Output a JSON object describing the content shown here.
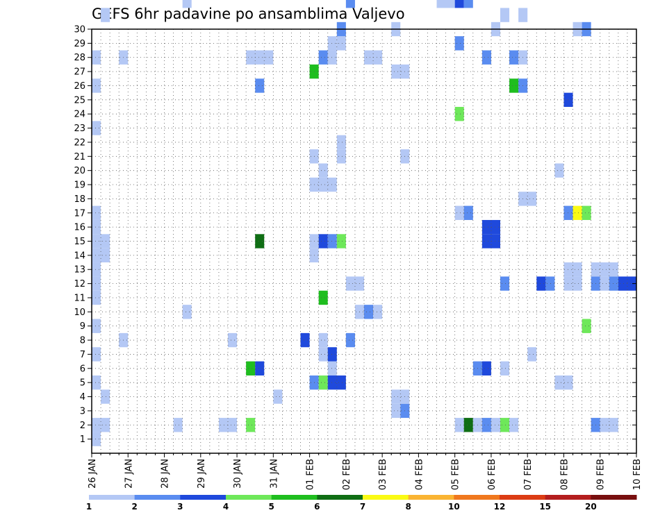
{
  "chart_data": {
    "type": "heatmap",
    "title": "GEFS 6hr padavine po ansamblima Valjevo",
    "xlabel": "",
    "ylabel": "",
    "x_tick_labels": [
      "26 JAN",
      "27 JAN",
      "28 JAN",
      "29 JAN",
      "30 JAN",
      "31 JAN",
      "01 FEB",
      "02 FEB",
      "03 FEB",
      "04 FEB",
      "05 FEB",
      "06 FEB",
      "07 FEB",
      "08 FEB",
      "09 FEB",
      "10 FEB"
    ],
    "y_tick_labels": [
      "1",
      "2",
      "3",
      "4",
      "5",
      "6",
      "7",
      "8",
      "9",
      "10",
      "11",
      "12",
      "13",
      "14",
      "15",
      "16",
      "17",
      "18",
      "19",
      "20",
      "21",
      "22",
      "23",
      "24",
      "25",
      "26",
      "27",
      "28",
      "29",
      "30"
    ],
    "x_range_hours": [
      0,
      360
    ],
    "y_range_members": [
      0,
      30
    ],
    "grid": true,
    "legend_placement": "bottom",
    "legend_thresholds": [
      "1",
      "2",
      "3",
      "4",
      "5",
      "6",
      "7",
      "8",
      "10",
      "12",
      "15",
      "20"
    ],
    "legend_colors": [
      "#b4c8f5",
      "#5a8cf0",
      "#1f49dc",
      "#6ee85a",
      "#1fbe1f",
      "#0f6e14",
      "#fafa14",
      "#fab432",
      "#f0781e",
      "#dc3c14",
      "#b41e1e",
      "#780f0f"
    ],
    "cells": [
      [
        0,
        1,
        6,
        1
      ],
      [
        0,
        2,
        6,
        1
      ],
      [
        6,
        2,
        6,
        1
      ],
      [
        54,
        2,
        6,
        1
      ],
      [
        84,
        2,
        12,
        1
      ],
      [
        102,
        2,
        6,
        4
      ],
      [
        240,
        2,
        6,
        1
      ],
      [
        246,
        2,
        6,
        6
      ],
      [
        252,
        2,
        6,
        1
      ],
      [
        258,
        2,
        6,
        2
      ],
      [
        264,
        2,
        6,
        1
      ],
      [
        270,
        2,
        6,
        4
      ],
      [
        276,
        2,
        6,
        1
      ],
      [
        330,
        2,
        6,
        2
      ],
      [
        336,
        2,
        12,
        1
      ],
      [
        198,
        3,
        6,
        1
      ],
      [
        204,
        3,
        6,
        2
      ],
      [
        6,
        4,
        6,
        1
      ],
      [
        120,
        4,
        6,
        1
      ],
      [
        198,
        4,
        12,
        1
      ],
      [
        0,
        5,
        6,
        1
      ],
      [
        144,
        5,
        6,
        2
      ],
      [
        150,
        5,
        6,
        4
      ],
      [
        156,
        5,
        12,
        3
      ],
      [
        306,
        5,
        12,
        1
      ],
      [
        102,
        6,
        6,
        5
      ],
      [
        108,
        6,
        6,
        3
      ],
      [
        156,
        6,
        6,
        1
      ],
      [
        252,
        6,
        6,
        2
      ],
      [
        258,
        6,
        6,
        3
      ],
      [
        270,
        6,
        6,
        1
      ],
      [
        0,
        7,
        6,
        1
      ],
      [
        150,
        7,
        6,
        1
      ],
      [
        156,
        7,
        6,
        3
      ],
      [
        288,
        7,
        6,
        1
      ],
      [
        18,
        8,
        6,
        1
      ],
      [
        90,
        8,
        6,
        1
      ],
      [
        138,
        8,
        6,
        3
      ],
      [
        150,
        8,
        6,
        1
      ],
      [
        168,
        8,
        6,
        2
      ],
      [
        0,
        9,
        6,
        1
      ],
      [
        324,
        9,
        6,
        4
      ],
      [
        60,
        10,
        6,
        1
      ],
      [
        174,
        10,
        6,
        1
      ],
      [
        180,
        10,
        6,
        2
      ],
      [
        186,
        10,
        6,
        1
      ],
      [
        0,
        11,
        6,
        1
      ],
      [
        150,
        11,
        6,
        5
      ],
      [
        0,
        12,
        6,
        1
      ],
      [
        168,
        12,
        12,
        1
      ],
      [
        270,
        12,
        6,
        2
      ],
      [
        294,
        12,
        6,
        3
      ],
      [
        300,
        12,
        6,
        2
      ],
      [
        312,
        12,
        12,
        1
      ],
      [
        330,
        12,
        6,
        2
      ],
      [
        336,
        12,
        6,
        1
      ],
      [
        342,
        12,
        6,
        2
      ],
      [
        348,
        12,
        12,
        3
      ],
      [
        0,
        13,
        6,
        1
      ],
      [
        312,
        13,
        12,
        1
      ],
      [
        330,
        13,
        6,
        1
      ],
      [
        336,
        13,
        12,
        1
      ],
      [
        0,
        14,
        12,
        1
      ],
      [
        144,
        14,
        6,
        1
      ],
      [
        0,
        15,
        12,
        1
      ],
      [
        108,
        15,
        6,
        6
      ],
      [
        144,
        15,
        6,
        1
      ],
      [
        150,
        15,
        6,
        3
      ],
      [
        156,
        15,
        6,
        2
      ],
      [
        162,
        15,
        6,
        4
      ],
      [
        258,
        15,
        12,
        3
      ],
      [
        0,
        16,
        6,
        1
      ],
      [
        258,
        16,
        12,
        3
      ],
      [
        0,
        17,
        6,
        1
      ],
      [
        240,
        17,
        6,
        1
      ],
      [
        246,
        17,
        6,
        2
      ],
      [
        312,
        17,
        6,
        2
      ],
      [
        318,
        17,
        6,
        7
      ],
      [
        324,
        17,
        6,
        4
      ],
      [
        282,
        18,
        12,
        1
      ],
      [
        144,
        19,
        18,
        1
      ],
      [
        150,
        20,
        6,
        1
      ],
      [
        306,
        20,
        6,
        1
      ],
      [
        144,
        21,
        6,
        1
      ],
      [
        162,
        21,
        6,
        1
      ],
      [
        204,
        21,
        6,
        1
      ],
      [
        162,
        22,
        6,
        1
      ],
      [
        0,
        23,
        6,
        1
      ],
      [
        240,
        24,
        6,
        4
      ],
      [
        312,
        25,
        6,
        3
      ],
      [
        0,
        26,
        6,
        1
      ],
      [
        108,
        26,
        6,
        2
      ],
      [
        276,
        26,
        6,
        5
      ],
      [
        282,
        26,
        6,
        2
      ],
      [
        144,
        27,
        6,
        5
      ],
      [
        198,
        27,
        12,
        1
      ],
      [
        0,
        28,
        6,
        1
      ],
      [
        18,
        28,
        6,
        1
      ],
      [
        102,
        28,
        18,
        1
      ],
      [
        150,
        28,
        6,
        2
      ],
      [
        156,
        28,
        6,
        1
      ],
      [
        180,
        28,
        12,
        1
      ],
      [
        258,
        28,
        6,
        2
      ],
      [
        276,
        28,
        6,
        2
      ],
      [
        282,
        28,
        6,
        1
      ],
      [
        156,
        29,
        6,
        1
      ],
      [
        162,
        29,
        6,
        1
      ],
      [
        240,
        29,
        6,
        2
      ],
      [
        162,
        30,
        6,
        2
      ],
      [
        198,
        30,
        6,
        1
      ],
      [
        264,
        30,
        6,
        1
      ],
      [
        318,
        30,
        6,
        1
      ],
      [
        324,
        30,
        6,
        2
      ],
      [
        6,
        31,
        6,
        1
      ],
      [
        270,
        31,
        6,
        1
      ],
      [
        282,
        31,
        6,
        1
      ],
      [
        60,
        32,
        6,
        1
      ],
      [
        168,
        32,
        6,
        2
      ],
      [
        228,
        32,
        12,
        1
      ],
      [
        240,
        32,
        6,
        3
      ],
      [
        246,
        32,
        6,
        2
      ]
    ]
  }
}
